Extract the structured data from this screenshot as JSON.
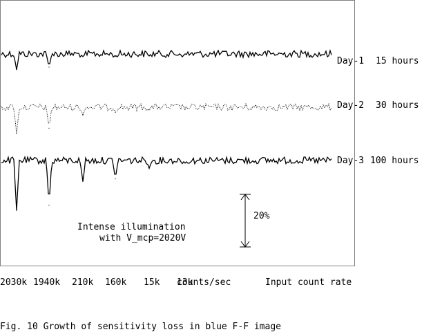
{
  "chart_data": {
    "type": "line",
    "title": "",
    "xlabel": "Input count rate",
    "x_unit": "counts/sec",
    "ylabel": "",
    "x_tick_labels": [
      "2030k",
      "1940k",
      "210k",
      "160k",
      "15k",
      "13k"
    ],
    "series": [
      {
        "name": "Day-1",
        "exposure": "15 hours",
        "style": "solid",
        "dips_percent": [
          -6,
          -5,
          -1,
          -1,
          -0.5,
          0
        ]
      },
      {
        "name": "Day-2",
        "exposure": "30 hours",
        "style": "dotted",
        "dips_percent": [
          -10,
          -8,
          -3,
          -2,
          -1,
          0
        ]
      },
      {
        "name": "Day-3",
        "exposure": "100 hours",
        "style": "solid",
        "dips_percent": [
          -19,
          -17,
          -8,
          -7,
          -3,
          -1
        ]
      }
    ],
    "scale_bar": {
      "label": "20%",
      "value_percent": 20
    },
    "annotation": [
      "Intense illumination",
      "with V_mcp=2020V"
    ],
    "grid": false,
    "legend": "right"
  },
  "figure": {
    "caption": "Fig. 10  Growth of sensitivity loss in blue F-F image"
  }
}
